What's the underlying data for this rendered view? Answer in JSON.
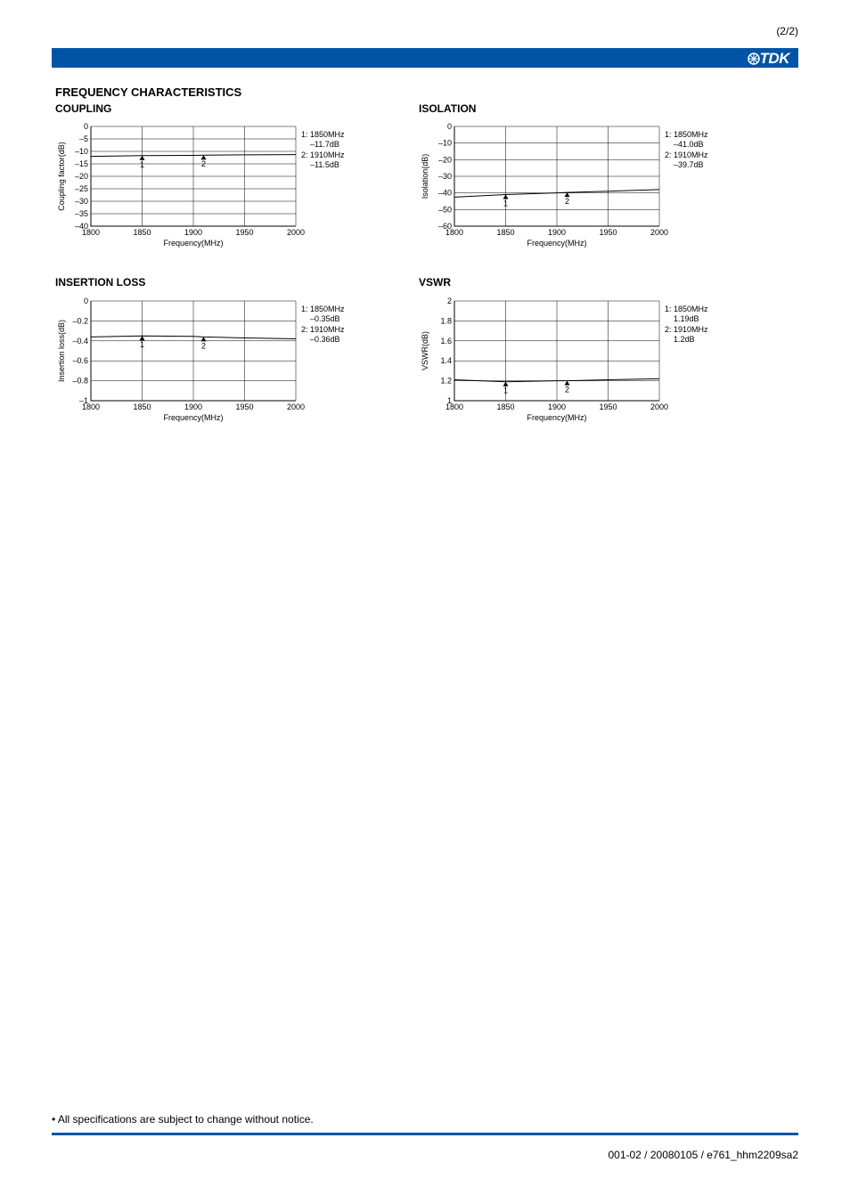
{
  "page_number": "(2/2)",
  "logo_text": "TDK",
  "colors": {
    "brand": "#0054a6",
    "text": "#000000",
    "grid": "#000000",
    "line": "#000000",
    "bg": "#ffffff"
  },
  "section_title": "FREQUENCY CHARACTERISTICS",
  "charts": {
    "coupling": {
      "title": "COUPLING",
      "type": "line",
      "xlabel": "Frequency(MHz)",
      "ylabel": "Coupling factor(dB)",
      "xlim": [
        1800,
        2000
      ],
      "xticks": [
        1800,
        1850,
        1900,
        1950,
        2000
      ],
      "ylim": [
        -40,
        0
      ],
      "yticks": [
        0,
        -5,
        -10,
        -15,
        -20,
        -25,
        -30,
        -35,
        -40
      ],
      "series": [
        {
          "x": [
            1800,
            1850,
            1900,
            1910,
            1950,
            2000
          ],
          "y": [
            -12.0,
            -11.7,
            -11.6,
            -11.5,
            -11.4,
            -11.3
          ]
        }
      ],
      "markers": [
        {
          "x": 1850,
          "label": "1"
        },
        {
          "x": 1910,
          "label": "2"
        }
      ],
      "legend": "1: 1850MHz\n    –11.7dB\n2: 1910MHz\n    –11.5dB",
      "line_color": "#000000",
      "grid_color": "#000000",
      "label_fontsize": 9,
      "tick_fontsize": 9
    },
    "isolation": {
      "title": "ISOLATION",
      "type": "line",
      "xlabel": "Frequency(MHz)",
      "ylabel": "Isolation(dB)",
      "xlim": [
        1800,
        2000
      ],
      "xticks": [
        1800,
        1850,
        1900,
        1950,
        2000
      ],
      "ylim": [
        -60,
        0
      ],
      "yticks": [
        0,
        -10,
        -20,
        -30,
        -40,
        -50,
        -60
      ],
      "series": [
        {
          "x": [
            1800,
            1850,
            1900,
            1910,
            1950,
            2000
          ],
          "y": [
            -42.5,
            -41.0,
            -40.0,
            -39.7,
            -39.0,
            -38.0
          ]
        }
      ],
      "markers": [
        {
          "x": 1850,
          "label": "1"
        },
        {
          "x": 1910,
          "label": "2"
        }
      ],
      "legend": "1: 1850MHz\n    –41.0dB\n2: 1910MHz\n    –39.7dB",
      "line_color": "#000000",
      "grid_color": "#000000",
      "label_fontsize": 9,
      "tick_fontsize": 9
    },
    "insertion": {
      "title": "INSERTION LOSS",
      "type": "line",
      "xlabel": "Frequency(MHz)",
      "ylabel": "Insertion loss(dB)",
      "xlim": [
        1800,
        2000
      ],
      "xticks": [
        1800,
        1850,
        1900,
        1950,
        2000
      ],
      "ylim": [
        -1,
        0
      ],
      "yticks": [
        0,
        -0.2,
        -0.4,
        -0.6,
        -0.8,
        -1
      ],
      "series": [
        {
          "x": [
            1800,
            1850,
            1900,
            1910,
            1950,
            2000
          ],
          "y": [
            -0.36,
            -0.35,
            -0.355,
            -0.36,
            -0.37,
            -0.38
          ]
        }
      ],
      "markers": [
        {
          "x": 1850,
          "label": "1"
        },
        {
          "x": 1910,
          "label": "2"
        }
      ],
      "legend": "1: 1850MHz\n    –0.35dB\n2: 1910MHz\n    –0.36dB",
      "line_color": "#000000",
      "grid_color": "#000000",
      "label_fontsize": 9,
      "tick_fontsize": 9
    },
    "vswr": {
      "title": "VSWR",
      "type": "line",
      "xlabel": "Frequency(MHz)",
      "ylabel": "VSWR(dB)",
      "xlim": [
        1800,
        2000
      ],
      "xticks": [
        1800,
        1850,
        1900,
        1950,
        2000
      ],
      "ylim": [
        1.0,
        2.0
      ],
      "yticks": [
        2.0,
        1.8,
        1.6,
        1.4,
        1.2,
        1.0
      ],
      "series": [
        {
          "x": [
            1800,
            1850,
            1900,
            1910,
            1950,
            2000
          ],
          "y": [
            1.21,
            1.19,
            1.2,
            1.2,
            1.21,
            1.22
          ]
        }
      ],
      "markers": [
        {
          "x": 1850,
          "label": "1"
        },
        {
          "x": 1910,
          "label": "2"
        }
      ],
      "legend": "1: 1850MHz\n    1.19dB\n2: 1910MHz\n    1.2dB",
      "line_color": "#000000",
      "grid_color": "#000000",
      "label_fontsize": 9,
      "tick_fontsize": 9
    }
  },
  "footer_note": "• All specifications are subject to change without notice.",
  "footer_code": "001-02 / 20080105 / e761_hhm2209sa2"
}
